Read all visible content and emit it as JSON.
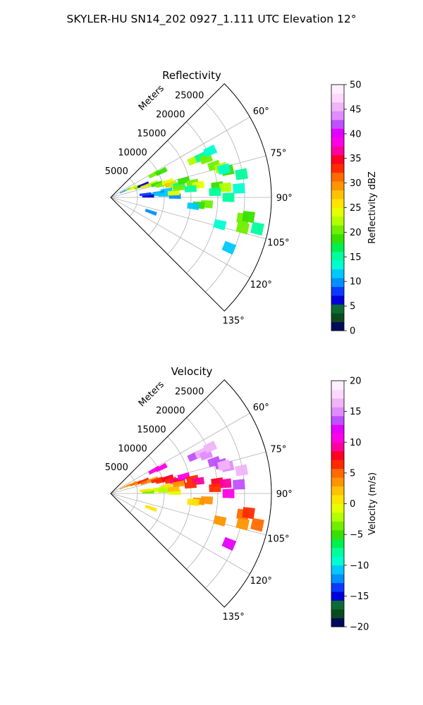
{
  "suptitle": "SKYLER-HU  SN14_202  0927_1.111 UTC Elevation 12°",
  "chart_data": [
    {
      "type": "heatmap",
      "subtype": "polar-sector-ppi",
      "title": "Reflectivity",
      "range_label": "Meters",
      "range_ticks": [
        5000,
        10000,
        15000,
        20000,
        25000
      ],
      "range_tick_labels": [
        "5000",
        "10000",
        "15000",
        "20000",
        "25000"
      ],
      "rmax": 30000,
      "theta_range_deg": [
        45,
        135
      ],
      "theta_ticks_deg": [
        60,
        75,
        90,
        105,
        120,
        135
      ],
      "theta_tick_labels": [
        "60°",
        "75°",
        "90°",
        "105°",
        "120°",
        "135°"
      ],
      "grid": true,
      "colorbar": {
        "label": "Reflectivity dBZ",
        "min": 0,
        "max": 50,
        "ticks": [
          0,
          5,
          10,
          15,
          20,
          25,
          30,
          35,
          40,
          45,
          50
        ],
        "tick_labels": [
          "0",
          "5",
          "10",
          "15",
          "20",
          "25",
          "30",
          "35",
          "40",
          "45",
          "50"
        ],
        "colors": [
          "#000c5a",
          "#0a4b1e",
          "#0c6a34",
          "#0000d8",
          "#0a3aff",
          "#0090ff",
          "#00c8ff",
          "#00ffd0",
          "#00ff9c",
          "#00f050",
          "#38e000",
          "#70ef00",
          "#b4ff00",
          "#e6ff00",
          "#ffe400",
          "#ffc200",
          "#ff9400",
          "#ff6a00",
          "#ff2a00",
          "#ff0024",
          "#ff00a0",
          "#ff00e6",
          "#e400ff",
          "#c050ff",
          "#e08cff",
          "#f0b4f8",
          "#ffd8ff",
          "#fff0ff"
        ]
      },
      "cells": [
        {
          "az": 62,
          "r": 9200,
          "v": 20
        },
        {
          "az": 63,
          "r": 10600,
          "v": 18
        },
        {
          "az": 66,
          "r": 17000,
          "v": 22
        },
        {
          "az": 66,
          "r": 18500,
          "v": 16
        },
        {
          "az": 68,
          "r": 19200,
          "v": 20
        },
        {
          "az": 65,
          "r": 20500,
          "v": 14
        },
        {
          "az": 73,
          "r": 20200,
          "v": 20
        },
        {
          "az": 75,
          "r": 21300,
          "v": 22
        },
        {
          "az": 77,
          "r": 22400,
          "v": 18
        },
        {
          "az": 76,
          "r": 21800,
          "v": 14
        },
        {
          "az": 65,
          "r": 3000,
          "v": 10
        },
        {
          "az": 66,
          "r": 4200,
          "v": 22
        },
        {
          "az": 68,
          "r": 5000,
          "v": 24
        },
        {
          "az": 70,
          "r": 5800,
          "v": 20
        },
        {
          "az": 69,
          "r": 6500,
          "v": 6
        },
        {
          "az": 72,
          "r": 7000,
          "v": 26
        },
        {
          "az": 72,
          "r": 8200,
          "v": 22
        },
        {
          "az": 74,
          "r": 9000,
          "v": 18
        },
        {
          "az": 76,
          "r": 9800,
          "v": 20
        },
        {
          "az": 75,
          "r": 11000,
          "v": 24
        },
        {
          "az": 78,
          "r": 11500,
          "v": 28
        },
        {
          "az": 79,
          "r": 12400,
          "v": 22
        },
        {
          "az": 80,
          "r": 13000,
          "v": 16
        },
        {
          "az": 77,
          "r": 14000,
          "v": 18
        },
        {
          "az": 80,
          "r": 15500,
          "v": 20
        },
        {
          "az": 82,
          "r": 16500,
          "v": 24
        },
        {
          "az": 84,
          "r": 15000,
          "v": 16
        },
        {
          "az": 83,
          "r": 10500,
          "v": 12
        },
        {
          "az": 85,
          "r": 9000,
          "v": 10
        },
        {
          "az": 86,
          "r": 8000,
          "v": 12
        },
        {
          "az": 88,
          "r": 7000,
          "v": 6
        },
        {
          "az": 85,
          "r": 6500,
          "v": 8
        },
        {
          "az": 87,
          "r": 10000,
          "v": 11
        },
        {
          "az": 89,
          "r": 12000,
          "v": 10
        },
        {
          "az": 86,
          "r": 11800,
          "v": 24
        },
        {
          "az": 82,
          "r": 12800,
          "v": 20
        },
        {
          "az": 84,
          "r": 20000,
          "v": 18
        },
        {
          "az": 85,
          "r": 21500,
          "v": 22
        },
        {
          "az": 87,
          "r": 19500,
          "v": 16
        },
        {
          "az": 94,
          "r": 18000,
          "v": 20
        },
        {
          "az": 95,
          "r": 16500,
          "v": 18
        },
        {
          "az": 96,
          "r": 15500,
          "v": 12
        },
        {
          "az": 90,
          "r": 22000,
          "v": 16
        },
        {
          "az": 99,
          "r": 25000,
          "v": 20
        },
        {
          "az": 98,
          "r": 26000,
          "v": 18
        },
        {
          "az": 103,
          "r": 25300,
          "v": 20
        },
        {
          "az": 104,
          "r": 21000,
          "v": 14
        },
        {
          "az": 102,
          "r": 28000,
          "v": 16
        },
        {
          "az": 113,
          "r": 24000,
          "v": 12
        },
        {
          "az": 110,
          "r": 8000,
          "v": 10
        },
        {
          "az": 86,
          "r": 24000,
          "v": 14
        },
        {
          "az": 80,
          "r": 24800,
          "v": 16
        }
      ]
    },
    {
      "type": "heatmap",
      "subtype": "polar-sector-ppi",
      "title": "Velocity",
      "range_label": "Meters",
      "range_ticks": [
        5000,
        10000,
        15000,
        20000,
        25000
      ],
      "range_tick_labels": [
        "5000",
        "10000",
        "15000",
        "20000",
        "25000"
      ],
      "rmax": 30000,
      "theta_range_deg": [
        45,
        135
      ],
      "theta_ticks_deg": [
        60,
        75,
        90,
        105,
        120,
        135
      ],
      "theta_tick_labels": [
        "60°",
        "75°",
        "90°",
        "105°",
        "120°",
        "135°"
      ],
      "grid": true,
      "colorbar": {
        "label": "Velocity (m/s)",
        "min": -20,
        "max": 20,
        "ticks": [
          -20,
          -15,
          -10,
          -5,
          0,
          5,
          10,
          15,
          20
        ],
        "tick_labels": [
          "−20",
          "−15",
          "−10",
          "−5",
          "0",
          "5",
          "10",
          "15",
          "20"
        ],
        "colors": [
          "#000c5a",
          "#0a4b1e",
          "#0c6a34",
          "#0000d8",
          "#0a3aff",
          "#0090ff",
          "#00c8ff",
          "#00ffd0",
          "#00ff9c",
          "#00f050",
          "#38e000",
          "#70ef00",
          "#b4ff00",
          "#e6ff00",
          "#ffe400",
          "#ffc200",
          "#ff9400",
          "#ff6a00",
          "#ff2a00",
          "#ff0024",
          "#ff00a0",
          "#ff00e6",
          "#e400ff",
          "#c050ff",
          "#e08cff",
          "#f0b4f8",
          "#ffd8ff",
          "#fff0ff"
        ]
      },
      "cells": [
        {
          "az": 62,
          "r": 9200,
          "v": 10
        },
        {
          "az": 63,
          "r": 10600,
          "v": 11
        },
        {
          "az": 66,
          "r": 17000,
          "v": 14
        },
        {
          "az": 66,
          "r": 18500,
          "v": 16
        },
        {
          "az": 68,
          "r": 19200,
          "v": 15
        },
        {
          "az": 65,
          "r": 20500,
          "v": 17
        },
        {
          "az": 73,
          "r": 20200,
          "v": 14
        },
        {
          "az": 75,
          "r": 21300,
          "v": 13
        },
        {
          "az": 77,
          "r": 22400,
          "v": 15
        },
        {
          "az": 76,
          "r": 21800,
          "v": 16
        },
        {
          "az": 65,
          "r": 3000,
          "v": 4
        },
        {
          "az": 66,
          "r": 4200,
          "v": 3
        },
        {
          "az": 68,
          "r": 5000,
          "v": 5
        },
        {
          "az": 70,
          "r": 5800,
          "v": 3
        },
        {
          "az": 69,
          "r": 6500,
          "v": 6
        },
        {
          "az": 72,
          "r": 7000,
          "v": 5
        },
        {
          "az": 72,
          "r": 8200,
          "v": 4
        },
        {
          "az": 74,
          "r": 9000,
          "v": 6
        },
        {
          "az": 76,
          "r": 9800,
          "v": 7
        },
        {
          "az": 75,
          "r": 11000,
          "v": 8
        },
        {
          "az": 78,
          "r": 11500,
          "v": 7
        },
        {
          "az": 79,
          "r": 12400,
          "v": 9
        },
        {
          "az": 80,
          "r": 13000,
          "v": 8
        },
        {
          "az": 77,
          "r": 14000,
          "v": 10
        },
        {
          "az": 80,
          "r": 15500,
          "v": 7
        },
        {
          "az": 82,
          "r": 16500,
          "v": 9
        },
        {
          "az": 84,
          "r": 15000,
          "v": 6
        },
        {
          "az": 83,
          "r": 10500,
          "v": 1
        },
        {
          "az": 85,
          "r": 9000,
          "v": -2
        },
        {
          "az": 86,
          "r": 8000,
          "v": -1
        },
        {
          "az": 88,
          "r": 7000,
          "v": -3
        },
        {
          "az": 85,
          "r": 6500,
          "v": 0
        },
        {
          "az": 87,
          "r": 10000,
          "v": -2
        },
        {
          "az": 89,
          "r": 12000,
          "v": -1
        },
        {
          "az": 86,
          "r": 11800,
          "v": 2
        },
        {
          "az": 82,
          "r": 12800,
          "v": 4
        },
        {
          "az": 84,
          "r": 20000,
          "v": 8
        },
        {
          "az": 85,
          "r": 21500,
          "v": 9
        },
        {
          "az": 87,
          "r": 19500,
          "v": 7
        },
        {
          "az": 94,
          "r": 18000,
          "v": 4
        },
        {
          "az": 95,
          "r": 16500,
          "v": 3
        },
        {
          "az": 96,
          "r": 15500,
          "v": 1
        },
        {
          "az": 90,
          "r": 22000,
          "v": 10
        },
        {
          "az": 99,
          "r": 25000,
          "v": 5
        },
        {
          "az": 98,
          "r": 26000,
          "v": 6
        },
        {
          "az": 103,
          "r": 25300,
          "v": 4
        },
        {
          "az": 104,
          "r": 21000,
          "v": 3
        },
        {
          "az": 102,
          "r": 28000,
          "v": 5
        },
        {
          "az": 113,
          "r": 24000,
          "v": 12
        },
        {
          "az": 110,
          "r": 8000,
          "v": 0
        },
        {
          "az": 86,
          "r": 24000,
          "v": 14
        },
        {
          "az": 80,
          "r": 24800,
          "v": 16
        }
      ]
    }
  ]
}
